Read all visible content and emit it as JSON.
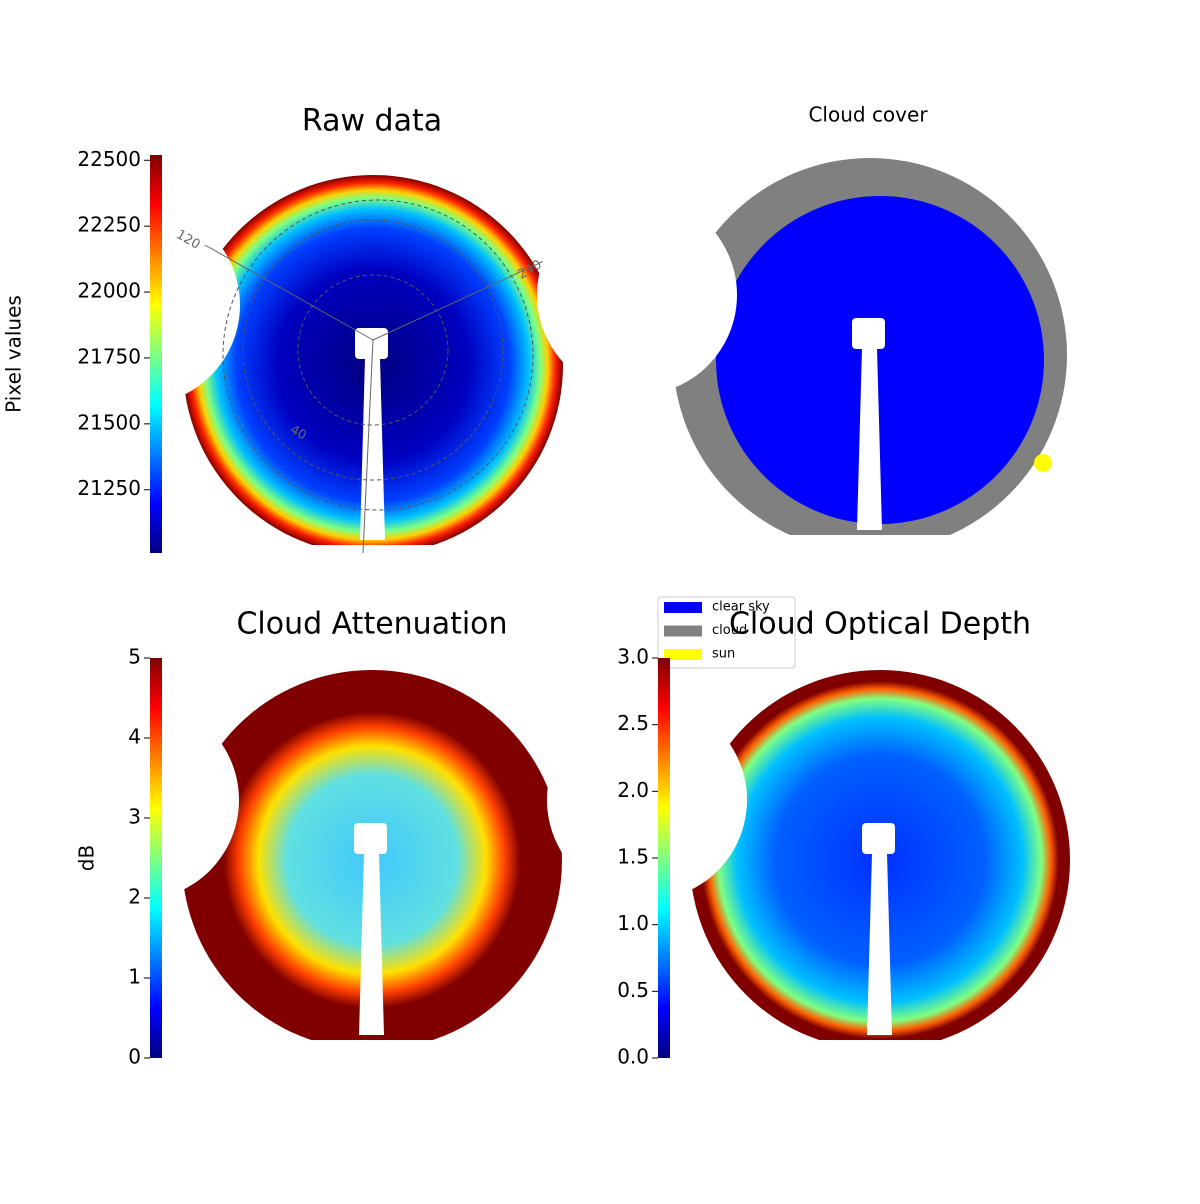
{
  "chart_data": [
    {
      "type": "image",
      "title": "Raw data",
      "colorbar_label": "Pixel values",
      "colormap": "jet",
      "ylim": [
        21010,
        22520
      ],
      "yticks": [
        21250,
        21500,
        21750,
        22000,
        22250,
        22500
      ],
      "annotations": [
        "120",
        "240",
        "40"
      ]
    },
    {
      "type": "image",
      "title": "Cloud cover",
      "series": [
        {
          "name": "clear sky",
          "color": "#0000ff"
        },
        {
          "name": "cloud",
          "color": "#808080"
        },
        {
          "name": "sun",
          "color": "#ffff00"
        }
      ]
    },
    {
      "type": "image",
      "title": "Cloud Attenuation",
      "colorbar_label": "dB",
      "colormap": "jet",
      "ylim": [
        0,
        5
      ],
      "yticks": [
        0,
        1,
        2,
        3,
        4,
        5
      ]
    },
    {
      "type": "image",
      "title": "Cloud Optical Depth",
      "colormap": "jet",
      "ylim": [
        0,
        3
      ],
      "yticks": [
        {
          "value": 0,
          "label": "0.0"
        },
        0.5,
        {
          "value": 1,
          "label": "1.0"
        },
        1.5,
        {
          "value": 2,
          "label": "2.0"
        },
        2.5,
        {
          "value": 3,
          "label": "3.0"
        }
      ]
    }
  ]
}
